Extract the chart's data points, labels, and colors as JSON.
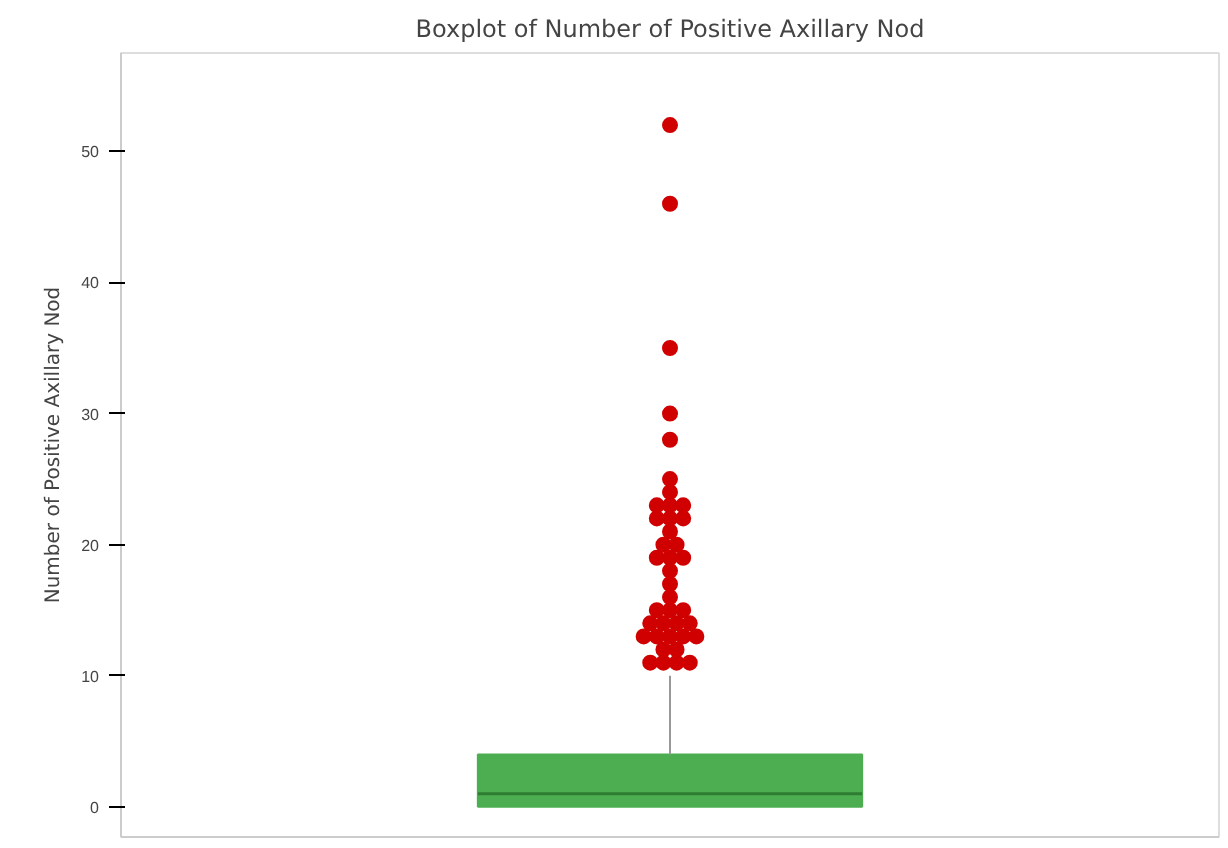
{
  "chart_data": {
    "type": "box",
    "title": "Boxplot of Number of Positive Axillary Nod",
    "ylabel": "Number of Positive Axillary Nod",
    "categories": [
      null
    ],
    "series": [
      {
        "color": "#4cae50",
        "boxes": [
          {
            "low": 0,
            "q1": 0,
            "median": 1,
            "q3": 4,
            "high": 10,
            "outliers": [
              11,
              11,
              11,
              11,
              12,
              12,
              13,
              13,
              13,
              13,
              13,
              14,
              14,
              14,
              14,
              15,
              15,
              15,
              16,
              17,
              18,
              19,
              19,
              19,
              20,
              20,
              21,
              22,
              22,
              22,
              23,
              23,
              23,
              24,
              25,
              28,
              30,
              35,
              46,
              52
            ]
          }
        ]
      }
    ],
    "ylim": [
      -2.3,
      57.5
    ],
    "yticks": [
      0,
      10,
      20,
      30,
      40,
      50
    ],
    "grid": false,
    "tick_labels": "y"
  }
}
